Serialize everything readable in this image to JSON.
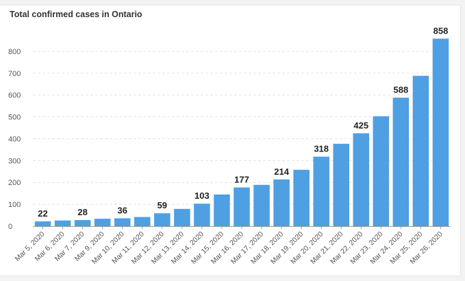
{
  "chart_data": {
    "type": "bar",
    "title": "Total confirmed cases in Ontario",
    "categories": [
      "Mar 5, 2020",
      "Mar 6, 2020",
      "Mar 7, 2020",
      "Mar 9, 2020",
      "Mar 10, 2020",
      "Mar 11, 2020",
      "Mar 12, 2020",
      "Mar 13, 2020",
      "Mar 14, 2020",
      "Mar 15, 2020",
      "Mar 16, 2020",
      "Mar 17, 2020",
      "Mar 18, 2020",
      "Mar 19, 2020",
      "Mar 20, 2020",
      "Mar 21, 2020",
      "Mar 22, 2020",
      "Mar 23, 2020",
      "Mar 24, 2020",
      "Mar 25, 2020",
      "Mar 26, 2020"
    ],
    "values": [
      22,
      26,
      28,
      34,
      36,
      42,
      59,
      79,
      103,
      145,
      177,
      189,
      214,
      258,
      318,
      377,
      425,
      503,
      588,
      688,
      858
    ],
    "data_labels": [
      "22",
      "",
      "28",
      "",
      "36",
      "",
      "59",
      "",
      "103",
      "",
      "177",
      "",
      "214",
      "",
      "318",
      "",
      "425",
      "",
      "588",
      "",
      "858"
    ],
    "yticks": [
      0,
      100,
      200,
      300,
      400,
      500,
      600,
      700,
      800
    ],
    "ylim": [
      0,
      900
    ],
    "grid": true,
    "bar_color": "#4f9fe3"
  }
}
